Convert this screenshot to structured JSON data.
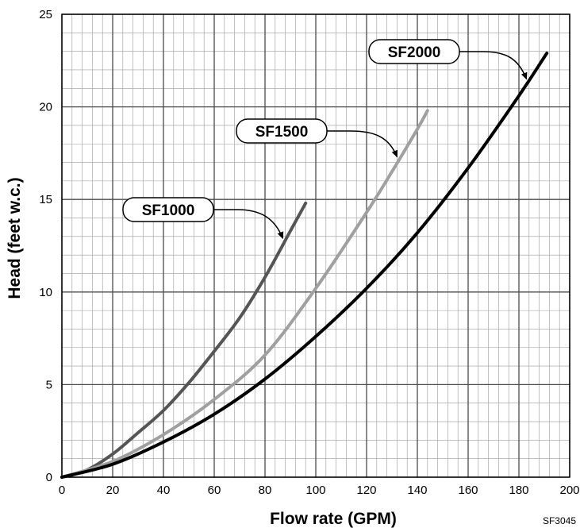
{
  "chart_data": {
    "type": "line",
    "xlabel": "Flow rate (GPM)",
    "ylabel": "Head (feet w.c.)",
    "xlim": [
      0,
      200
    ],
    "ylim": [
      0,
      25
    ],
    "x_ticks": [
      0,
      20,
      40,
      60,
      80,
      100,
      120,
      140,
      160,
      180,
      200
    ],
    "y_ticks": [
      0,
      5,
      10,
      15,
      20,
      25
    ],
    "x_tick_labels": [
      "0",
      "20",
      "40",
      "60",
      "80",
      "100",
      "120",
      "140",
      "160",
      "180",
      "200"
    ],
    "y_tick_labels": [
      "0",
      "5",
      "10",
      "15",
      "20",
      "25"
    ],
    "grid": true,
    "series": [
      {
        "name": "SF1000",
        "color": "#555555",
        "x": [
          0,
          10,
          20,
          30,
          40,
          50,
          60,
          70,
          80,
          90,
          96
        ],
        "y": [
          0,
          0.4,
          1.25,
          2.4,
          3.6,
          5.1,
          6.8,
          8.6,
          10.8,
          13.3,
          14.8
        ]
      },
      {
        "name": "SF1500",
        "color": "#a0a0a0",
        "x": [
          0,
          20,
          40,
          60,
          80,
          100,
          120,
          130,
          140,
          144
        ],
        "y": [
          0,
          0.85,
          2.3,
          4.2,
          6.6,
          10.2,
          14.3,
          16.5,
          18.8,
          19.8
        ]
      },
      {
        "name": "SF2000",
        "color": "#000000",
        "x": [
          0,
          20,
          40,
          60,
          80,
          100,
          120,
          140,
          160,
          180,
          191
        ],
        "y": [
          0,
          0.7,
          1.9,
          3.4,
          5.3,
          7.6,
          10.2,
          13.2,
          16.7,
          20.6,
          22.9
        ]
      }
    ],
    "annotations": [
      {
        "label": "SF1000",
        "series": "SF1000",
        "arrow_to": [
          87,
          12.9
        ]
      },
      {
        "label": "SF1500",
        "series": "SF1500",
        "arrow_to": [
          132,
          17.3
        ]
      },
      {
        "label": "SF2000",
        "series": "SF2000",
        "arrow_to": [
          183,
          21.5
        ]
      }
    ]
  },
  "figure_code": "SF3045"
}
